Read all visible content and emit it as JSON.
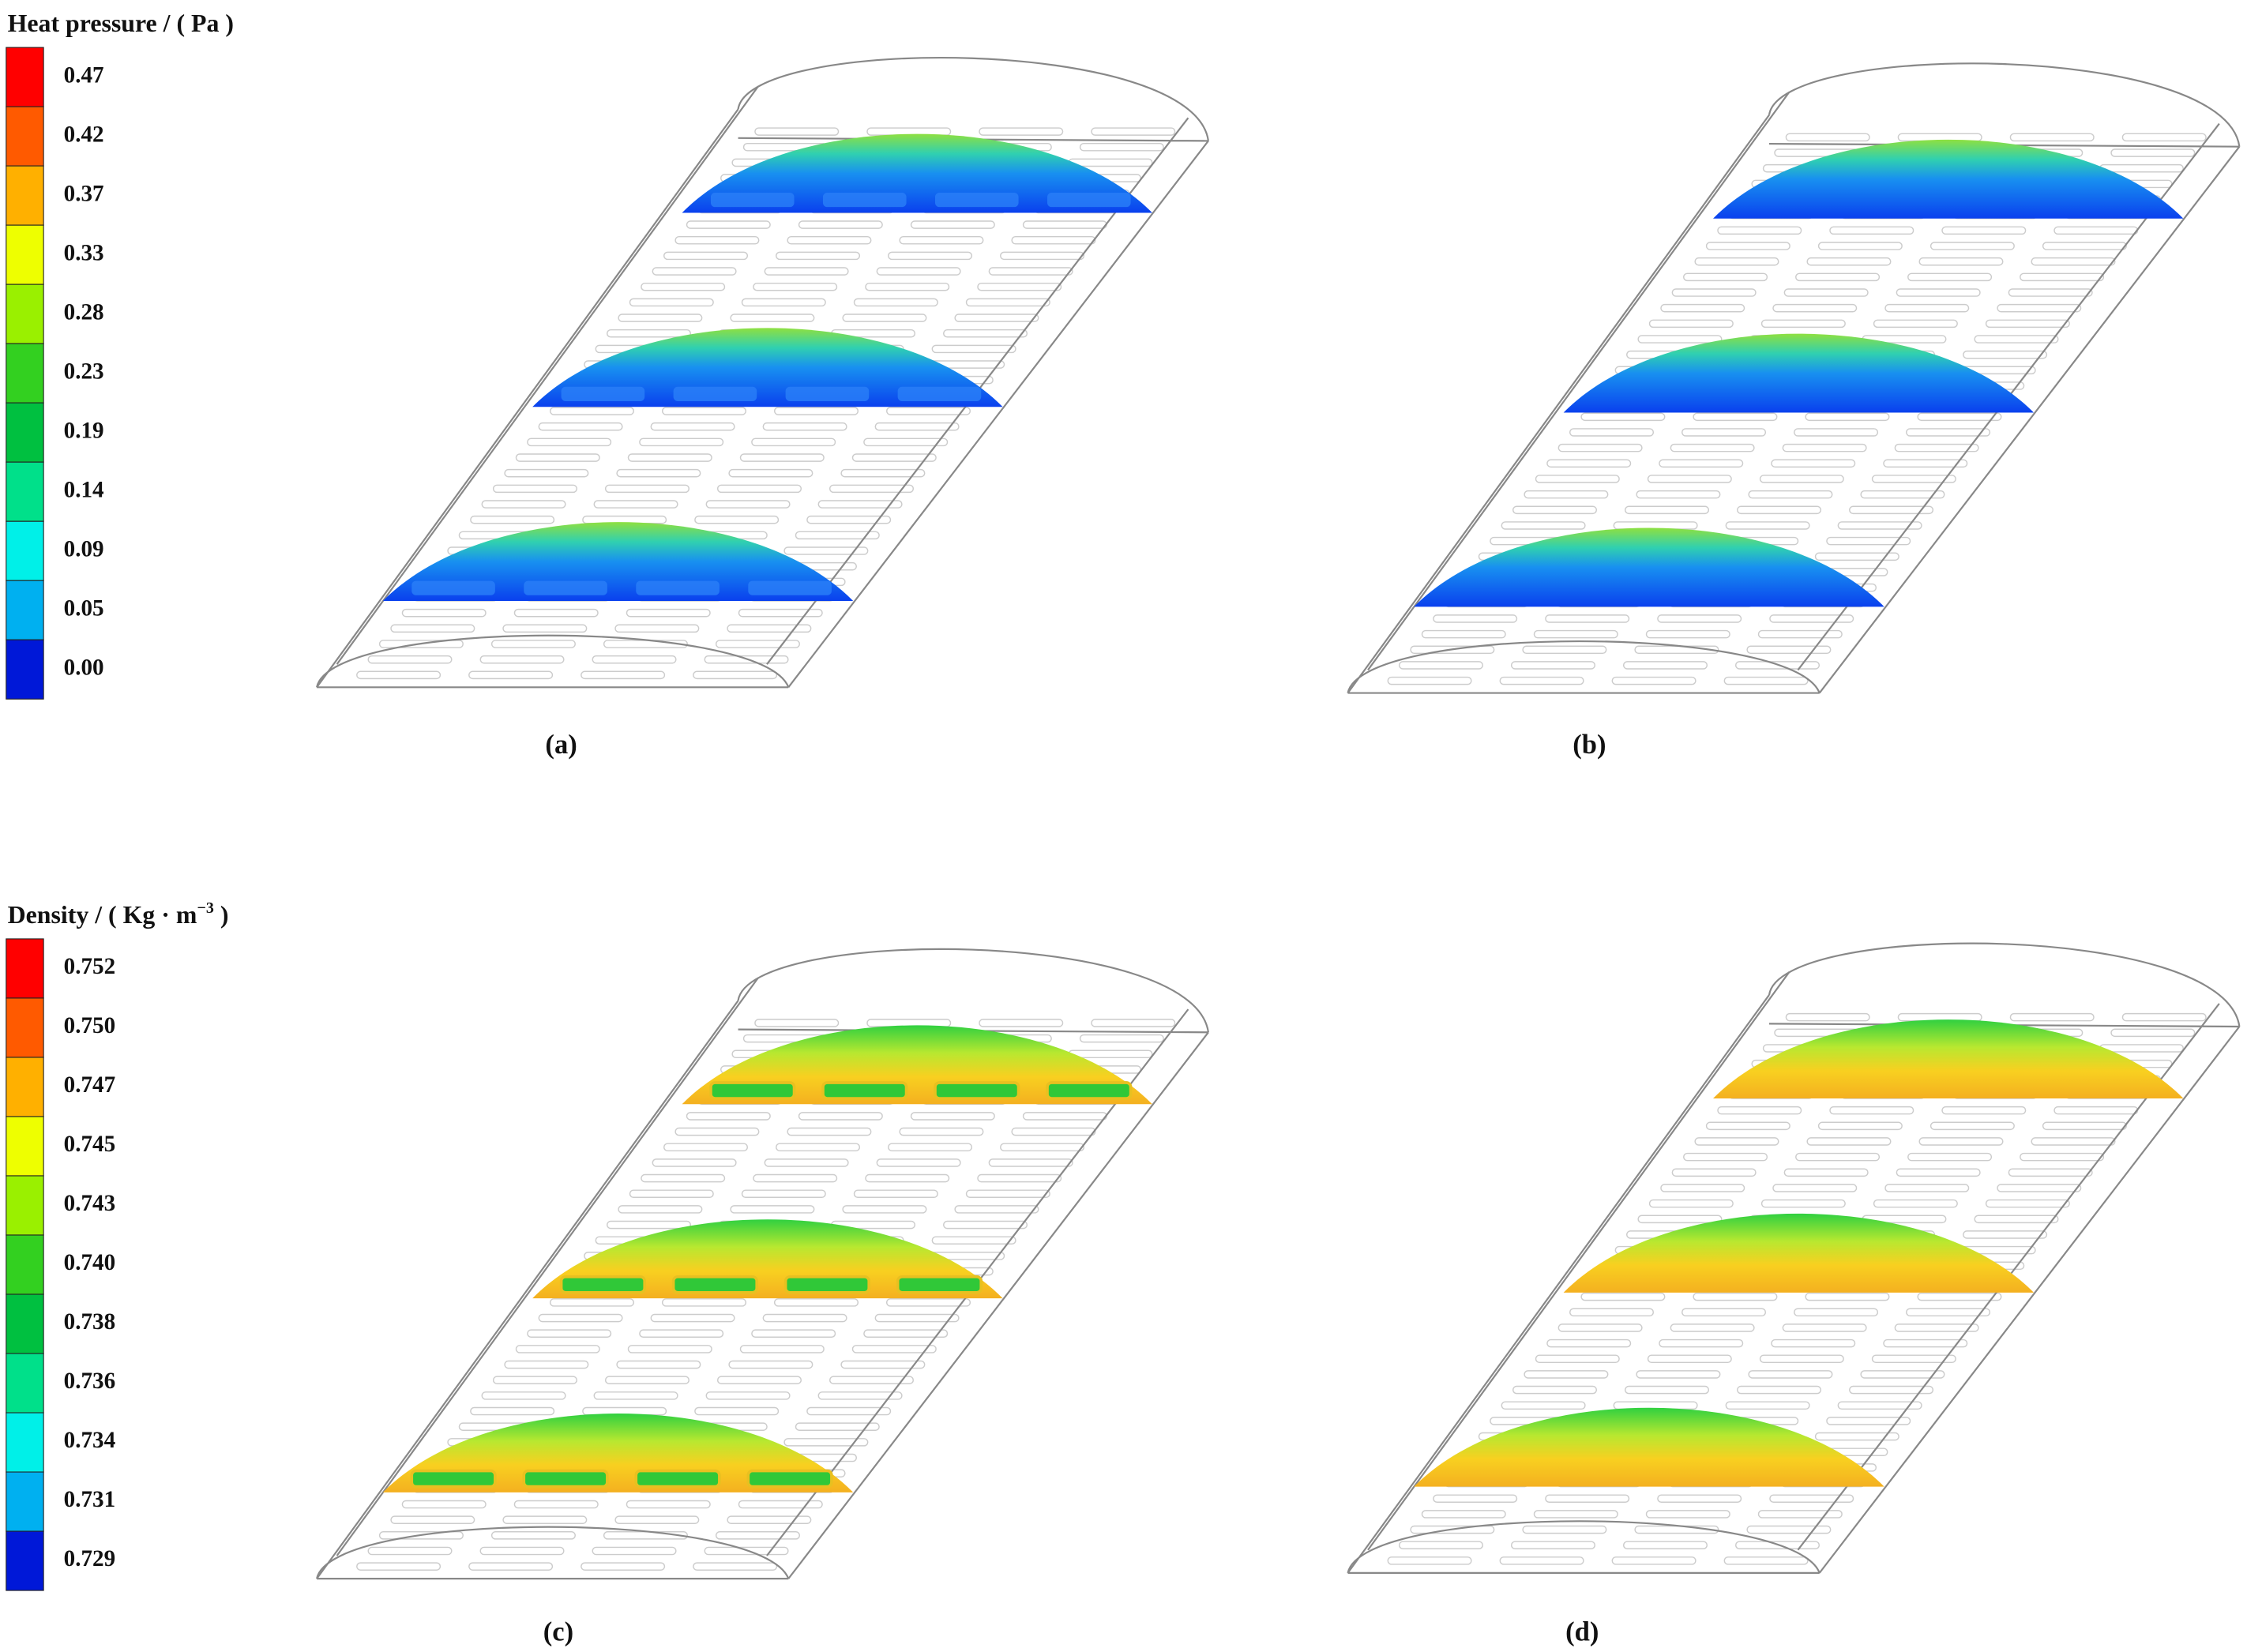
{
  "legends": [
    {
      "title": "Heat pressure / ( Pa )",
      "labels": [
        "0.47",
        "0.42",
        "0.37",
        "0.33",
        "0.28",
        "0.23",
        "0.19",
        "0.14",
        "0.09",
        "0.05",
        "0.00"
      ]
    },
    {
      "title": "Density / ( Kg · m",
      "title_superscript": "−3",
      "title_end": " )",
      "labels": [
        "0.752",
        "0.750",
        "0.747",
        "0.745",
        "0.743",
        "0.740",
        "0.738",
        "0.736",
        "0.734",
        "0.731",
        "0.729"
      ]
    }
  ],
  "panels": [
    "(a)",
    "(b)",
    "(c)",
    "(d)"
  ]
}
